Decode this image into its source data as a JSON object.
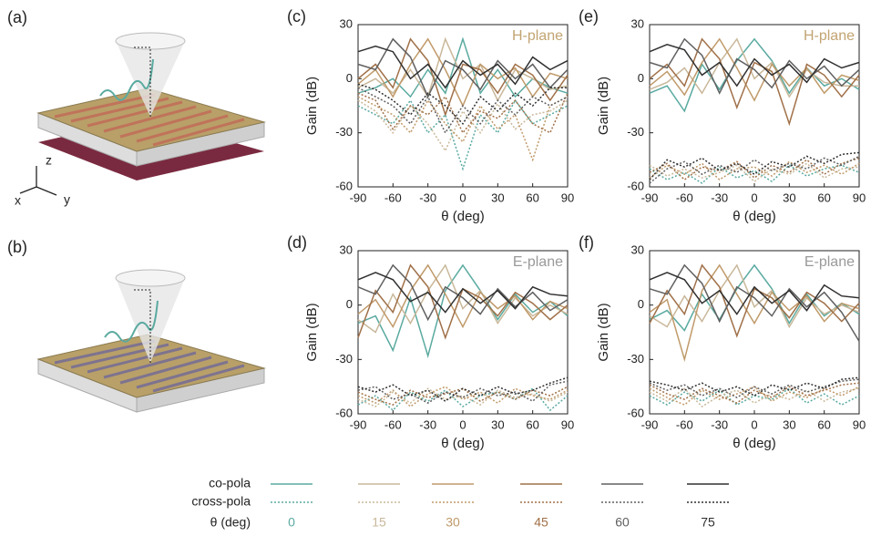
{
  "illustrations": [
    {
      "label": "(a)",
      "axes": [
        "z",
        "x",
        "y"
      ]
    },
    {
      "label": "(b)"
    }
  ],
  "chart_data": [
    {
      "type": "line",
      "label": "(c)",
      "title": "H-plane",
      "title_color": "#c2a472",
      "x_label": "θ (deg)",
      "y_label": "Gain (dB)",
      "x": [
        -90,
        -75,
        -60,
        -45,
        -30,
        -15,
        0,
        15,
        30,
        45,
        60,
        75,
        90
      ],
      "xlim": [
        -90,
        90
      ],
      "ylim": [
        -60,
        30
      ],
      "xticks": [
        -90,
        -60,
        -30,
        0,
        30,
        60,
        90
      ],
      "yticks": [
        -60,
        -30,
        0,
        30
      ],
      "series": [
        {
          "color": "#5aaaa0",
          "dashed": false,
          "values": [
            -8,
            -5,
            0,
            -10,
            5,
            -8,
            22,
            -8,
            5,
            -10,
            0,
            -5,
            -8
          ]
        },
        {
          "color": "#c9b89a",
          "dashed": false,
          "values": [
            -5,
            0,
            -8,
            5,
            -10,
            22,
            0,
            8,
            -12,
            5,
            0,
            -6,
            -4
          ]
        },
        {
          "color": "#c09a6a",
          "dashed": false,
          "values": [
            -3,
            5,
            -10,
            8,
            22,
            5,
            -15,
            8,
            0,
            6,
            -10,
            3,
            0
          ]
        },
        {
          "color": "#a07048",
          "dashed": false,
          "values": [
            0,
            8,
            -5,
            22,
            10,
            -20,
            8,
            5,
            -8,
            8,
            2,
            -12,
            2
          ]
        },
        {
          "color": "#606060",
          "dashed": false,
          "values": [
            8,
            5,
            22,
            12,
            -10,
            10,
            5,
            -6,
            10,
            0,
            8,
            -5,
            5
          ]
        },
        {
          "color": "#303030",
          "dashed": false,
          "values": [
            15,
            18,
            15,
            0,
            8,
            -5,
            10,
            2,
            8,
            -3,
            12,
            5,
            10
          ]
        },
        {
          "color": "#5aaaa0",
          "dashed": true,
          "values": [
            -15,
            -20,
            -25,
            -12,
            -30,
            -20,
            -50,
            -20,
            -30,
            -12,
            -25,
            -20,
            -15
          ]
        },
        {
          "color": "#c9b89a",
          "dashed": true,
          "values": [
            -12,
            -18,
            -30,
            -15,
            -25,
            -40,
            -18,
            -30,
            -14,
            -28,
            -20,
            -18,
            -12
          ]
        },
        {
          "color": "#c09a6a",
          "dashed": true,
          "values": [
            -10,
            -15,
            -20,
            -30,
            -12,
            -25,
            -35,
            -15,
            -28,
            -20,
            -45,
            -15,
            -10
          ]
        },
        {
          "color": "#a07048",
          "dashed": true,
          "values": [
            -8,
            -12,
            -28,
            -15,
            -20,
            -10,
            -30,
            -18,
            -22,
            -12,
            -25,
            -30,
            -8
          ]
        },
        {
          "color": "#606060",
          "dashed": true,
          "values": [
            -5,
            -10,
            -15,
            -25,
            -10,
            -30,
            -15,
            -25,
            -12,
            -20,
            -10,
            -15,
            -10
          ]
        },
        {
          "color": "#303030",
          "dashed": true,
          "values": [
            -3,
            -6,
            -12,
            -20,
            -8,
            -15,
            -25,
            -10,
            -18,
            -8,
            -15,
            -5,
            -5
          ]
        }
      ]
    },
    {
      "type": "line",
      "label": "(d)",
      "title": "E-plane",
      "title_color": "#9a9a9a",
      "x_label": "θ (deg)",
      "y_label": "Gain (dB)",
      "x": [
        -90,
        -75,
        -60,
        -45,
        -30,
        -15,
        0,
        15,
        30,
        45,
        60,
        75,
        90
      ],
      "xlim": [
        -90,
        90
      ],
      "ylim": [
        -60,
        30
      ],
      "xticks": [
        -90,
        -60,
        -30,
        0,
        30,
        60,
        90
      ],
      "yticks": [
        -60,
        -30,
        0,
        30
      ],
      "series": [
        {
          "color": "#5aaaa0",
          "dashed": false,
          "values": [
            -10,
            -6,
            -25,
            4,
            -28,
            8,
            22,
            8,
            -8,
            6,
            -4,
            2,
            -6
          ]
        },
        {
          "color": "#c9b89a",
          "dashed": false,
          "values": [
            -8,
            -15,
            6,
            -10,
            8,
            22,
            -2,
            8,
            -10,
            4,
            -6,
            0,
            -5
          ]
        },
        {
          "color": "#c09a6a",
          "dashed": false,
          "values": [
            -5,
            3,
            -12,
            8,
            22,
            6,
            -12,
            7,
            -2,
            5,
            -8,
            2,
            -2
          ]
        },
        {
          "color": "#a07048",
          "dashed": false,
          "values": [
            -18,
            8,
            -4,
            22,
            10,
            -18,
            9,
            4,
            -6,
            7,
            1,
            -8,
            0
          ]
        },
        {
          "color": "#606060",
          "dashed": false,
          "values": [
            10,
            6,
            22,
            12,
            -8,
            10,
            4,
            -5,
            9,
            -1,
            7,
            -3,
            3
          ]
        },
        {
          "color": "#303030",
          "dashed": false,
          "values": [
            14,
            18,
            14,
            2,
            7,
            -4,
            9,
            1,
            8,
            -2,
            10,
            6,
            5
          ]
        },
        {
          "color": "#5aaaa0",
          "dashed": true,
          "values": [
            -55,
            -50,
            -58,
            -48,
            -53,
            -47,
            -56,
            -50,
            -48,
            -52,
            -46,
            -58,
            -50
          ]
        },
        {
          "color": "#c9b89a",
          "dashed": true,
          "values": [
            -52,
            -56,
            -48,
            -54,
            -46,
            -52,
            -50,
            -55,
            -47,
            -51,
            -49,
            -53,
            -48
          ]
        },
        {
          "color": "#c09a6a",
          "dashed": true,
          "values": [
            -50,
            -54,
            -47,
            -56,
            -49,
            -45,
            -52,
            -48,
            -54,
            -46,
            -50,
            -52,
            -47
          ]
        },
        {
          "color": "#a07048",
          "dashed": true,
          "values": [
            -48,
            -52,
            -55,
            -47,
            -51,
            -49,
            -46,
            -53,
            -48,
            -52,
            -47,
            -50,
            -45
          ]
        },
        {
          "color": "#606060",
          "dashed": true,
          "values": [
            -47,
            -45,
            -52,
            -49,
            -54,
            -48,
            -51,
            -46,
            -50,
            -48,
            -53,
            -44,
            -42
          ]
        },
        {
          "color": "#303030",
          "dashed": true,
          "values": [
            -45,
            -48,
            -44,
            -50,
            -47,
            -53,
            -46,
            -50,
            -45,
            -49,
            -47,
            -43,
            -40
          ]
        }
      ]
    },
    {
      "type": "line",
      "label": "(e)",
      "title": "H-plane",
      "title_color": "#c2a472",
      "x_label": "θ (deg)",
      "y_label": "Gain (dB)",
      "x": [
        -90,
        -75,
        -60,
        -45,
        -30,
        -15,
        0,
        15,
        30,
        45,
        60,
        75,
        90
      ],
      "xlim": [
        -90,
        90
      ],
      "ylim": [
        -60,
        30
      ],
      "xticks": [
        -90,
        -60,
        -30,
        0,
        30,
        60,
        90
      ],
      "yticks": [
        -60,
        -30,
        0,
        30
      ],
      "series": [
        {
          "color": "#5aaaa0",
          "dashed": false,
          "values": [
            -8,
            -4,
            -18,
            8,
            -6,
            10,
            22,
            10,
            -8,
            6,
            -4,
            0,
            -6
          ]
        },
        {
          "color": "#c9b89a",
          "dashed": false,
          "values": [
            -6,
            -2,
            6,
            -8,
            9,
            22,
            0,
            9,
            -10,
            5,
            -2,
            -4,
            -4
          ]
        },
        {
          "color": "#c09a6a",
          "dashed": false,
          "values": [
            -4,
            4,
            -9,
            9,
            22,
            6,
            -12,
            8,
            -4,
            6,
            -8,
            2,
            -1
          ]
        },
        {
          "color": "#a07048",
          "dashed": false,
          "values": [
            0,
            8,
            -4,
            22,
            11,
            -16,
            9,
            4,
            -25,
            8,
            2,
            -10,
            2
          ]
        },
        {
          "color": "#606060",
          "dashed": false,
          "values": [
            9,
            6,
            22,
            13,
            -8,
            11,
            5,
            -5,
            10,
            0,
            7,
            -4,
            5
          ]
        },
        {
          "color": "#303030",
          "dashed": false,
          "values": [
            15,
            19,
            16,
            2,
            9,
            -4,
            11,
            2,
            8,
            -2,
            11,
            6,
            9
          ]
        },
        {
          "color": "#5aaaa0",
          "dashed": true,
          "values": [
            -50,
            -56,
            -52,
            -58,
            -49,
            -55,
            -51,
            -57,
            -48,
            -54,
            -50,
            -48,
            -52
          ]
        },
        {
          "color": "#c9b89a",
          "dashed": true,
          "values": [
            -48,
            -54,
            -50,
            -55,
            -52,
            -48,
            -57,
            -50,
            -53,
            -47,
            -55,
            -50,
            -49
          ]
        },
        {
          "color": "#c09a6a",
          "dashed": true,
          "values": [
            -55,
            -48,
            -53,
            -47,
            -56,
            -50,
            -49,
            -54,
            -46,
            -52,
            -48,
            -53,
            -47
          ]
        },
        {
          "color": "#a07048",
          "dashed": true,
          "values": [
            -52,
            -47,
            -56,
            -49,
            -51,
            -46,
            -55,
            -48,
            -52,
            -45,
            -53,
            -47,
            -44
          ]
        },
        {
          "color": "#606060",
          "dashed": true,
          "values": [
            -58,
            -50,
            -46,
            -53,
            -48,
            -52,
            -45,
            -51,
            -47,
            -50,
            -44,
            -48,
            -43
          ]
        },
        {
          "color": "#303030",
          "dashed": true,
          "values": [
            -56,
            -45,
            -49,
            -44,
            -51,
            -47,
            -53,
            -46,
            -49,
            -43,
            -47,
            -42,
            -41
          ]
        }
      ]
    },
    {
      "type": "line",
      "label": "(f)",
      "title": "E-plane",
      "title_color": "#9a9a9a",
      "x_label": "θ (deg)",
      "y_label": "Gain (dB)",
      "x": [
        -90,
        -75,
        -60,
        -45,
        -30,
        -15,
        0,
        15,
        30,
        45,
        60,
        75,
        90
      ],
      "xlim": [
        -90,
        90
      ],
      "ylim": [
        -60,
        30
      ],
      "xticks": [
        -90,
        -60,
        -30,
        0,
        30,
        60,
        90
      ],
      "yticks": [
        -60,
        -30,
        0,
        30
      ],
      "series": [
        {
          "color": "#5aaaa0",
          "dashed": false,
          "values": [
            -8,
            -3,
            -14,
            6,
            -8,
            9,
            22,
            9,
            -10,
            6,
            -6,
            1,
            -5
          ]
        },
        {
          "color": "#c9b89a",
          "dashed": false,
          "values": [
            -6,
            -12,
            5,
            -9,
            8,
            22,
            -1,
            8,
            -12,
            4,
            -5,
            0,
            -4
          ]
        },
        {
          "color": "#c09a6a",
          "dashed": false,
          "values": [
            -4,
            3,
            -30,
            8,
            22,
            6,
            -10,
            7,
            -3,
            5,
            -9,
            1,
            -2
          ]
        },
        {
          "color": "#a07048",
          "dashed": false,
          "values": [
            -10,
            8,
            -5,
            22,
            10,
            -17,
            9,
            4,
            -7,
            7,
            1,
            -9,
            1
          ]
        },
        {
          "color": "#606060",
          "dashed": false,
          "values": [
            9,
            6,
            22,
            12,
            -9,
            10,
            4,
            -6,
            9,
            -1,
            7,
            -4,
            -20
          ]
        },
        {
          "color": "#303030",
          "dashed": false,
          "values": [
            14,
            18,
            14,
            1,
            8,
            -5,
            10,
            1,
            8,
            -3,
            11,
            5,
            4
          ]
        },
        {
          "color": "#5aaaa0",
          "dashed": true,
          "values": [
            -50,
            -55,
            -48,
            -53,
            -47,
            -55,
            -50,
            -52,
            -46,
            -54,
            -49,
            -55,
            -50
          ]
        },
        {
          "color": "#c9b89a",
          "dashed": true,
          "values": [
            -48,
            -53,
            -46,
            -56,
            -50,
            -47,
            -54,
            -49,
            -52,
            -47,
            -53,
            -48,
            -46
          ]
        },
        {
          "color": "#c09a6a",
          "dashed": true,
          "values": [
            -46,
            -51,
            -55,
            -47,
            -52,
            -49,
            -45,
            -53,
            -48,
            -51,
            -46,
            -50,
            -45
          ]
        },
        {
          "color": "#a07048",
          "dashed": true,
          "values": [
            -44,
            -49,
            -52,
            -46,
            -50,
            -54,
            -47,
            -51,
            -45,
            -50,
            -47,
            -44,
            -43
          ]
        },
        {
          "color": "#606060",
          "dashed": true,
          "values": [
            -43,
            -47,
            -44,
            -50,
            -46,
            -51,
            -45,
            -49,
            -44,
            -48,
            -45,
            -42,
            -41
          ]
        },
        {
          "color": "#303030",
          "dashed": true,
          "values": [
            -42,
            -44,
            -47,
            -43,
            -48,
            -45,
            -50,
            -44,
            -47,
            -43,
            -46,
            -41,
            -40
          ]
        }
      ]
    }
  ],
  "legend": {
    "co_label": "co-pola",
    "cross_label": "cross-pola",
    "theta_label": "θ (deg)",
    "angles": [
      0,
      15,
      30,
      45,
      60,
      75
    ],
    "colors": [
      "#5aaaa0",
      "#c9b89a",
      "#c09a6a",
      "#a07048",
      "#606060",
      "#303030"
    ]
  }
}
